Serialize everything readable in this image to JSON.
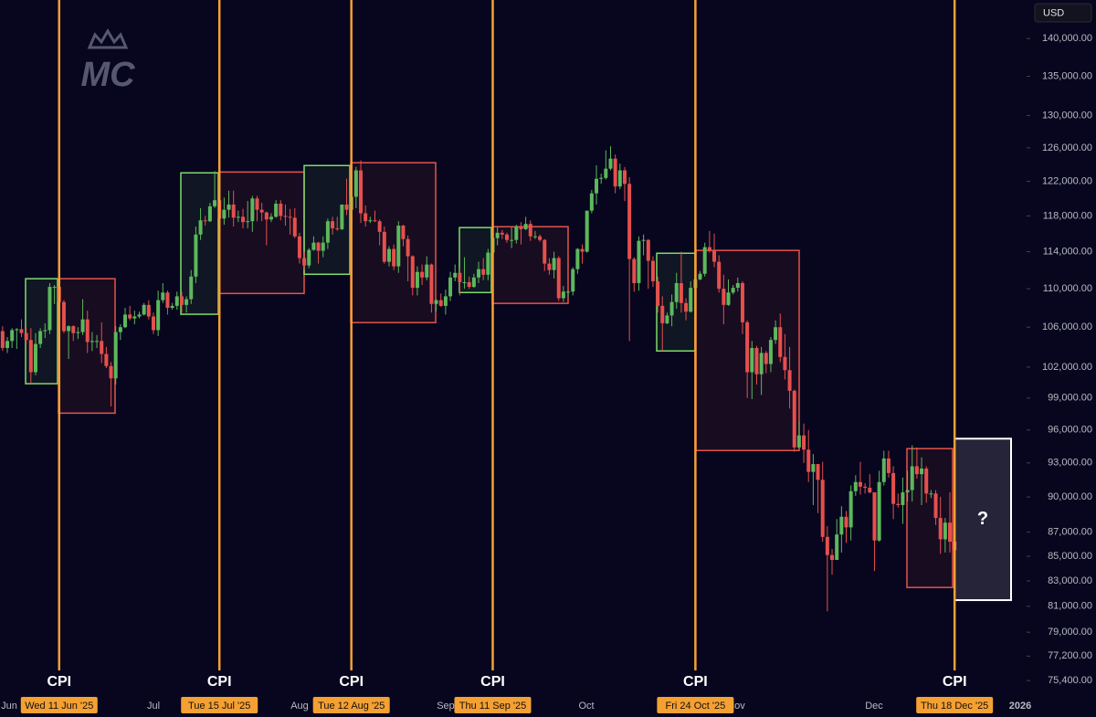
{
  "chart_data": {
    "type": "candlestick",
    "currency": "USD",
    "logo": "MC",
    "log_scale": true,
    "ylim": [
      72800,
      145300
    ],
    "yticks": [
      {
        "value": 140000,
        "label": "140,000.00"
      },
      {
        "value": 135000,
        "label": "135,000.00"
      },
      {
        "value": 130000,
        "label": "130,000.00"
      },
      {
        "value": 126000,
        "label": "126,000.00"
      },
      {
        "value": 122000,
        "label": "122,000.00"
      },
      {
        "value": 118000,
        "label": "118,000.00"
      },
      {
        "value": 114000,
        "label": "114,000.00"
      },
      {
        "value": 110000,
        "label": "110,000.00"
      },
      {
        "value": 106000,
        "label": "106,000.00"
      },
      {
        "value": 102000,
        "label": "102,000.00"
      },
      {
        "value": 99000,
        "label": "99,000.00"
      },
      {
        "value": 96000,
        "label": "96,000.00"
      },
      {
        "value": 93000,
        "label": "93,000.00"
      },
      {
        "value": 90000,
        "label": "90,000.00"
      },
      {
        "value": 87000,
        "label": "87,000.00"
      },
      {
        "value": 85000,
        "label": "85,000.00"
      },
      {
        "value": 83000,
        "label": "83,000.00"
      },
      {
        "value": 81000,
        "label": "81,000.00"
      },
      {
        "value": 79000,
        "label": "79,000.00"
      },
      {
        "value": 77200,
        "label": "77,200.00"
      },
      {
        "value": 75400,
        "label": "75,400.00"
      }
    ],
    "x_labels": [
      "Jun",
      "Jul",
      "Aug",
      "Sep",
      "Oct",
      "Nov",
      "Dec",
      "2026"
    ],
    "colors": {
      "up": "#5cb85c",
      "down": "#e5504d",
      "event": "#f5a033"
    },
    "events": [
      {
        "name": "CPI",
        "date": "Wed 11 Jun '25"
      },
      {
        "name": "CPI",
        "date": "Tue 15 Jul '25"
      },
      {
        "name": "CPI",
        "date": "Tue 12 Aug '25"
      },
      {
        "name": "CPI",
        "date": "Thu 11 Sep '25"
      },
      {
        "name": "CPI",
        "date": "Fri 24 Oct '25"
      },
      {
        "name": "CPI",
        "date": "Thu 18 Dec '25"
      }
    ],
    "boxes": [
      {
        "color": "#7ddc6a",
        "high": 111070,
        "low": 100380
      },
      {
        "color": "#e5534b",
        "high": 111070,
        "low": 97570
      },
      {
        "color": "#7ddc6a",
        "high": 123000,
        "low": 107330
      },
      {
        "color": "#e5534b",
        "high": 123100,
        "low": 109500
      },
      {
        "color": "#7ddc6a",
        "high": 123870,
        "low": 111550
      },
      {
        "color": "#e5534b",
        "high": 124210,
        "low": 106470
      },
      {
        "color": "#7ddc6a",
        "high": 116680,
        "low": 109600
      },
      {
        "color": "#e5534b",
        "high": 116780,
        "low": 108460
      },
      {
        "color": "#7ddc6a",
        "high": 113830,
        "low": 103600
      },
      {
        "color": "#e5534b",
        "high": 114140,
        "low": 94120
      },
      {
        "color": "#e5534b",
        "high": 94290,
        "low": 82480
      }
    ],
    "forecast": {
      "text": "?",
      "color": "#ffffff",
      "high": 95200,
      "low": 81480
    },
    "ohlc": [
      [
        107600,
        108200,
        105000,
        105600
      ],
      [
        105600,
        106100,
        103600,
        103900
      ],
      [
        103900,
        105000,
        103400,
        104600
      ],
      [
        104600,
        105900,
        103900,
        105700
      ],
      [
        105700,
        105900,
        103800,
        105800
      ],
      [
        105800,
        106800,
        105000,
        105400
      ],
      [
        105400,
        106000,
        104200,
        104700
      ],
      [
        104700,
        105900,
        100400,
        101500
      ],
      [
        101500,
        105400,
        101200,
        104300
      ],
      [
        104300,
        105900,
        103900,
        105600
      ],
      [
        105600,
        106400,
        104900,
        105700
      ],
      [
        105700,
        110600,
        105300,
        110200
      ],
      [
        110200,
        110400,
        108400,
        110200
      ],
      [
        110200,
        110400,
        108300,
        108600
      ],
      [
        108600,
        108800,
        105400,
        105600
      ],
      [
        105600,
        106200,
        102800,
        106100
      ],
      [
        106100,
        106200,
        104600,
        105400
      ],
      [
        105400,
        106000,
        104800,
        105500
      ],
      [
        105500,
        108900,
        105200,
        106800
      ],
      [
        106800,
        107700,
        103400,
        104500
      ],
      [
        104500,
        105500,
        103600,
        104600
      ],
      [
        104600,
        105200,
        103900,
        104600
      ],
      [
        104600,
        106500,
        102400,
        103300
      ],
      [
        103300,
        104000,
        101900,
        102100
      ],
      [
        102100,
        102500,
        98200,
        100900
      ],
      [
        100900,
        106100,
        100300,
        105500
      ],
      [
        105500,
        106300,
        104700,
        106000
      ],
      [
        106000,
        108000,
        105900,
        107300
      ],
      [
        107300,
        108200,
        106700,
        106900
      ],
      [
        106900,
        107700,
        106300,
        107100
      ],
      [
        107100,
        107600,
        106900,
        107300
      ],
      [
        107300,
        108500,
        107200,
        108300
      ],
      [
        108300,
        108800,
        106800,
        107100
      ],
      [
        107100,
        107500,
        105300,
        105700
      ],
      [
        105700,
        109800,
        105100,
        108800
      ],
      [
        108800,
        110600,
        108500,
        109600
      ],
      [
        109600,
        109800,
        107300,
        108000
      ],
      [
        108000,
        108500,
        107800,
        108200
      ],
      [
        108200,
        109700,
        107800,
        109200
      ],
      [
        109200,
        109700,
        107500,
        108300
      ],
      [
        108300,
        109200,
        107500,
        108900
      ],
      [
        108900,
        112000,
        108400,
        111300
      ],
      [
        111300,
        116800,
        110600,
        115900
      ],
      [
        115900,
        118900,
        115300,
        117500
      ],
      [
        117500,
        118000,
        116900,
        117400
      ],
      [
        117400,
        119500,
        117300,
        119100
      ],
      [
        119100,
        123200,
        118900,
        119800
      ],
      [
        119800,
        119900,
        115700,
        117700
      ],
      [
        117700,
        120100,
        117000,
        118700
      ],
      [
        118700,
        120900,
        117800,
        119300
      ],
      [
        119300,
        120900,
        116800,
        117800
      ],
      [
        117800,
        118600,
        117300,
        117900
      ],
      [
        117900,
        118800,
        116600,
        117300
      ],
      [
        117300,
        119700,
        116600,
        117400
      ],
      [
        117400,
        120300,
        116200,
        120000
      ],
      [
        120000,
        120300,
        117400,
        118700
      ],
      [
        118700,
        119500,
        117400,
        118400
      ],
      [
        118400,
        118500,
        114700,
        117600
      ],
      [
        117600,
        118300,
        117300,
        117900
      ],
      [
        117900,
        119800,
        117800,
        119400
      ],
      [
        119400,
        119800,
        117500,
        118000
      ],
      [
        118000,
        119300,
        116900,
        117900
      ],
      [
        117900,
        118800,
        115900,
        117800
      ],
      [
        117800,
        118900,
        115500,
        115700
      ],
      [
        115700,
        116100,
        112700,
        113300
      ],
      [
        113300,
        114000,
        112000,
        112500
      ],
      [
        112500,
        114400,
        112200,
        114200
      ],
      [
        114200,
        115700,
        114100,
        115000
      ],
      [
        115000,
        115100,
        112700,
        114100
      ],
      [
        114100,
        115700,
        113400,
        115000
      ],
      [
        115000,
        117700,
        114300,
        117400
      ],
      [
        117400,
        117900,
        115900,
        116600
      ],
      [
        116600,
        117900,
        116300,
        116500
      ],
      [
        116500,
        119300,
        116400,
        119300
      ],
      [
        119300,
        122300,
        118100,
        118700
      ],
      [
        118700,
        120300,
        118100,
        120200
      ],
      [
        120200,
        123700,
        118900,
        123300
      ],
      [
        123300,
        124500,
        117200,
        118300
      ],
      [
        118300,
        119200,
        116800,
        117400
      ],
      [
        117400,
        117900,
        117200,
        117500
      ],
      [
        117500,
        118600,
        117300,
        117400
      ],
      [
        117400,
        117600,
        114700,
        116200
      ],
      [
        116200,
        116800,
        112700,
        112900
      ],
      [
        112900,
        114600,
        112400,
        114300
      ],
      [
        114300,
        114800,
        112000,
        112400
      ],
      [
        112400,
        117400,
        111700,
        116900
      ],
      [
        116900,
        117000,
        114600,
        115400
      ],
      [
        115400,
        115800,
        110800,
        113500
      ],
      [
        113500,
        113600,
        109300,
        110100
      ],
      [
        110100,
        112400,
        109300,
        111800
      ],
      [
        111800,
        112600,
        110400,
        111200
      ],
      [
        111200,
        113500,
        110900,
        112600
      ],
      [
        112600,
        112700,
        107500,
        108400
      ],
      [
        108400,
        108900,
        107600,
        108800
      ],
      [
        108800,
        109500,
        108100,
        108200
      ],
      [
        108200,
        109900,
        107300,
        109200
      ],
      [
        109200,
        111800,
        108700,
        111200
      ],
      [
        111200,
        112600,
        110800,
        111700
      ],
      [
        111700,
        112200,
        109300,
        110700
      ],
      [
        110700,
        113400,
        110000,
        110700
      ],
      [
        110700,
        111300,
        110000,
        110200
      ],
      [
        110200,
        111600,
        110100,
        111200
      ],
      [
        111200,
        112900,
        110600,
        112100
      ],
      [
        112100,
        113300,
        110900,
        111500
      ],
      [
        111500,
        114300,
        110900,
        113900
      ],
      [
        113900,
        115600,
        113400,
        115500
      ],
      [
        115500,
        116700,
        114700,
        116100
      ],
      [
        116100,
        116400,
        115400,
        115900
      ],
      [
        115900,
        116100,
        115000,
        115300
      ],
      [
        115300,
        116700,
        114400,
        115300
      ],
      [
        115300,
        117000,
        114900,
        116800
      ],
      [
        116800,
        117300,
        114800,
        116500
      ],
      [
        116500,
        117900,
        116400,
        117100
      ],
      [
        117100,
        117500,
        115200,
        115700
      ],
      [
        115700,
        116300,
        115400,
        115700
      ],
      [
        115700,
        115900,
        115100,
        115300
      ],
      [
        115300,
        115400,
        111900,
        112700
      ],
      [
        112700,
        113300,
        111500,
        112000
      ],
      [
        112000,
        114000,
        111100,
        113300
      ],
      [
        113300,
        113500,
        108700,
        109000
      ],
      [
        109000,
        110300,
        108600,
        109700
      ],
      [
        109700,
        109800,
        109100,
        109700
      ],
      [
        109700,
        112300,
        109300,
        112100
      ],
      [
        112100,
        114400,
        111600,
        114300
      ],
      [
        114300,
        114800,
        112700,
        114000
      ],
      [
        114000,
        118600,
        113900,
        118600
      ],
      [
        118600,
        121000,
        118300,
        120600
      ],
      [
        120600,
        123900,
        119300,
        122300
      ],
      [
        122300,
        122900,
        121700,
        122400
      ],
      [
        122400,
        125700,
        122200,
        123500
      ],
      [
        123500,
        126200,
        123300,
        124700
      ],
      [
        124700,
        125200,
        120600,
        121400
      ],
      [
        121400,
        124100,
        121100,
        123300
      ],
      [
        123300,
        123700,
        119700,
        121700
      ],
      [
        121700,
        122500,
        104600,
        113200
      ],
      [
        113200,
        113400,
        109700,
        110600
      ],
      [
        110600,
        115700,
        109800,
        115200
      ],
      [
        115200,
        115900,
        113600,
        115300
      ],
      [
        115300,
        115400,
        110000,
        113000
      ],
      [
        113000,
        113500,
        110200,
        110800
      ],
      [
        110800,
        111300,
        107500,
        108200
      ],
      [
        108200,
        109200,
        103600,
        106400
      ],
      [
        106400,
        107500,
        106300,
        107200
      ],
      [
        107200,
        109400,
        106100,
        108600
      ],
      [
        108600,
        111700,
        107900,
        110600
      ],
      [
        110600,
        114000,
        107500,
        108500
      ],
      [
        108500,
        109000,
        106700,
        107600
      ],
      [
        107600,
        110800,
        107500,
        110100
      ],
      [
        110100,
        112000,
        109700,
        111000
      ],
      [
        111000,
        111900,
        110900,
        111600
      ],
      [
        111600,
        115000,
        111300,
        114500
      ],
      [
        114500,
        116300,
        113900,
        114100
      ],
      [
        114100,
        116000,
        112300,
        112900
      ],
      [
        112900,
        113600,
        109600,
        110000
      ],
      [
        110000,
        111500,
        106300,
        108300
      ],
      [
        108300,
        111000,
        108200,
        109600
      ],
      [
        109600,
        110400,
        109400,
        110100
      ],
      [
        110100,
        111200,
        109700,
        110600
      ],
      [
        110600,
        110800,
        105300,
        106500
      ],
      [
        106500,
        106700,
        99000,
        101500
      ],
      [
        101500,
        104600,
        98900,
        103900
      ],
      [
        103900,
        104100,
        100300,
        101300
      ],
      [
        101300,
        104000,
        99300,
        103400
      ],
      [
        103400,
        103600,
        101400,
        102300
      ],
      [
        102300,
        105000,
        101500,
        104700
      ],
      [
        104700,
        106700,
        104300,
        106000
      ],
      [
        106000,
        107400,
        102500,
        103000
      ],
      [
        103000,
        105300,
        100800,
        101700
      ],
      [
        101700,
        104000,
        98000,
        99700
      ],
      [
        99700,
        99800,
        94000,
        94400
      ],
      [
        94400,
        96800,
        94300,
        95500
      ],
      [
        95500,
        96600,
        93000,
        94200
      ],
      [
        94200,
        96000,
        91300,
        92200
      ],
      [
        92200,
        93800,
        89300,
        92900
      ],
      [
        92900,
        92900,
        88600,
        91500
      ],
      [
        91500,
        93100,
        86200,
        86600
      ],
      [
        86600,
        87500,
        80600,
        85100
      ],
      [
        85100,
        85600,
        83500,
        84700
      ],
      [
        84700,
        88100,
        84700,
        86800
      ],
      [
        86800,
        89200,
        85300,
        88300
      ],
      [
        88300,
        88800,
        86100,
        87400
      ],
      [
        87400,
        91000,
        86300,
        90500
      ],
      [
        90500,
        91900,
        90100,
        91300
      ],
      [
        91300,
        93100,
        90200,
        90900
      ],
      [
        90900,
        91200,
        90300,
        90800
      ],
      [
        90800,
        92000,
        90300,
        90400
      ],
      [
        90400,
        90400,
        83800,
        86300
      ],
      [
        86300,
        92300,
        86200,
        91300
      ],
      [
        91300,
        94100,
        91000,
        93400
      ],
      [
        93400,
        94100,
        91700,
        92100
      ],
      [
        92100,
        92700,
        88100,
        89400
      ],
      [
        89400,
        90300,
        89100,
        89300
      ],
      [
        89300,
        91700,
        87700,
        90400
      ],
      [
        90400,
        92300,
        89600,
        90600
      ],
      [
        90600,
        94600,
        89600,
        92700
      ],
      [
        92700,
        94400,
        91600,
        92000
      ],
      [
        92000,
        93500,
        89300,
        92500
      ],
      [
        92500,
        92700,
        89500,
        90300
      ],
      [
        90300,
        90600,
        89900,
        90300
      ],
      [
        90300,
        90600,
        87600,
        88200
      ],
      [
        88200,
        90000,
        85200,
        86400
      ],
      [
        86400,
        88200,
        85300,
        87800
      ],
      [
        87800,
        90400,
        85300,
        86200
      ],
      [
        86200,
        89400,
        84500,
        85500
      ]
    ]
  }
}
